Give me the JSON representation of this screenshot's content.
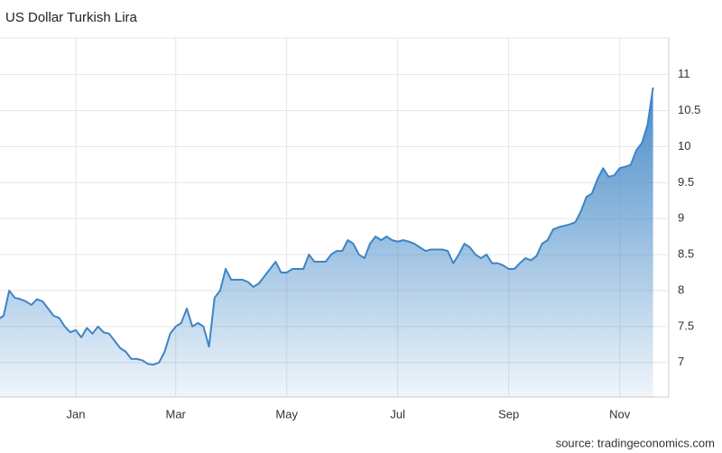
{
  "chart_data": {
    "type": "area",
    "title": "US Dollar Turkish Lira",
    "source": "source: tradingeconomics.com",
    "color": "#3d85c6",
    "grid": true,
    "y_axis_side": "right",
    "ylim": [
      6.52,
      11.51
    ],
    "yticks": [
      7,
      7.5,
      8,
      8.5,
      9,
      9.5,
      10,
      10.5,
      11
    ],
    "categories": [
      null,
      null,
      null,
      null,
      null,
      null,
      null,
      null,
      null,
      null,
      null,
      null,
      null,
      null,
      "Jan",
      null,
      null,
      null,
      null,
      null,
      null,
      null,
      null,
      null,
      null,
      null,
      null,
      null,
      null,
      null,
      null,
      null,
      "Mar",
      null,
      null,
      null,
      null,
      null,
      null,
      null,
      null,
      null,
      null,
      null,
      null,
      null,
      null,
      null,
      null,
      null,
      null,
      null,
      "May",
      null,
      null,
      null,
      null,
      null,
      null,
      null,
      null,
      null,
      null,
      null,
      null,
      null,
      null,
      null,
      null,
      null,
      null,
      null,
      "Jul",
      null,
      null,
      null,
      null,
      null,
      null,
      null,
      null,
      null,
      null,
      null,
      null,
      null,
      null,
      null,
      null,
      null,
      null,
      null,
      "Sep",
      null,
      null,
      null,
      null,
      null,
      null,
      null,
      null,
      null,
      null,
      null,
      null,
      null,
      null,
      null,
      null,
      null,
      null,
      null,
      "Nov",
      null,
      null,
      null,
      null,
      null,
      null
    ],
    "values": [
      7.6,
      7.65,
      8.0,
      7.9,
      7.88,
      7.85,
      7.8,
      7.88,
      7.85,
      7.75,
      7.65,
      7.62,
      7.5,
      7.42,
      7.45,
      7.35,
      7.48,
      7.4,
      7.5,
      7.42,
      7.4,
      7.3,
      7.2,
      7.15,
      7.05,
      7.05,
      7.03,
      6.98,
      6.97,
      7.0,
      7.15,
      7.4,
      7.5,
      7.55,
      7.75,
      7.5,
      7.55,
      7.5,
      7.22,
      7.9,
      8.0,
      8.3,
      8.15,
      8.15,
      8.15,
      8.12,
      8.05,
      8.1,
      8.2,
      8.3,
      8.4,
      8.25,
      8.25,
      8.3,
      8.3,
      8.3,
      8.5,
      8.4,
      8.4,
      8.4,
      8.5,
      8.55,
      8.55,
      8.7,
      8.65,
      8.5,
      8.45,
      8.65,
      8.75,
      8.7,
      8.75,
      8.7,
      8.68,
      8.7,
      8.68,
      8.65,
      8.6,
      8.55,
      8.57,
      8.57,
      8.57,
      8.55,
      8.38,
      8.5,
      8.65,
      8.6,
      8.5,
      8.45,
      8.5,
      8.38,
      8.38,
      8.35,
      8.3,
      8.3,
      8.38,
      8.45,
      8.42,
      8.48,
      8.65,
      8.7,
      8.85,
      8.88,
      8.9,
      8.92,
      8.95,
      9.1,
      9.3,
      9.35,
      9.55,
      9.7,
      9.58,
      9.6,
      9.7,
      9.72,
      9.75,
      9.95,
      10.05,
      10.3,
      10.82
    ]
  }
}
